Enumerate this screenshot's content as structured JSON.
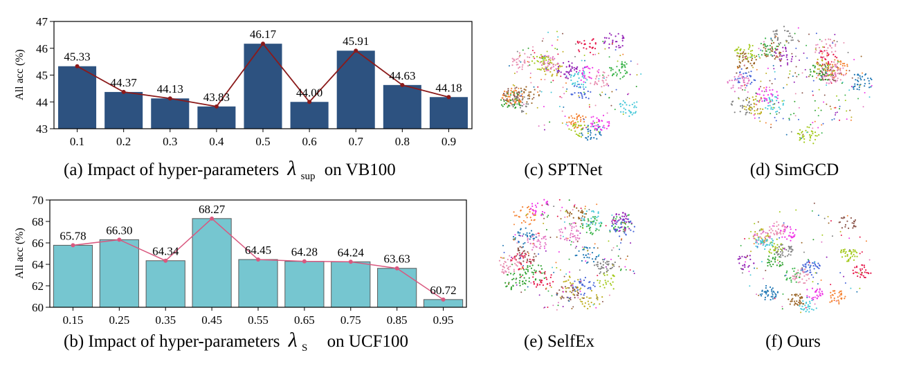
{
  "chart_data": [
    {
      "type": "bar",
      "title": "(a) Impact of hyper-parameters",
      "title_symbol": "λ",
      "title_subscript": "sup",
      "title_suffix": "on VB100",
      "ylabel": "All acc (%)",
      "xlabel": "",
      "ylim": [
        43,
        47
      ],
      "yticks": [
        "43",
        "44",
        "45",
        "46",
        "47"
      ],
      "categories": [
        "0.1",
        "0.2",
        "0.3",
        "0.4",
        "0.5",
        "0.6",
        "0.7",
        "0.8",
        "0.9"
      ],
      "values": [
        45.33,
        44.37,
        44.13,
        43.83,
        46.17,
        44.0,
        45.91,
        44.63,
        44.18
      ],
      "labels": [
        "45.33",
        "44.37",
        "44.13",
        "43.83",
        "46.17",
        "44.00",
        "45.91",
        "44.63",
        "44.18"
      ],
      "bar_color": "#2d5280",
      "line_color": "#8b1a1a",
      "grid": false
    },
    {
      "type": "bar",
      "title": "(b) Impact of hyper-parameters",
      "title_symbol": "λ",
      "title_subscript": "S",
      "title_suffix": "on UCF100",
      "ylabel": "All acc (%)",
      "xlabel": "",
      "ylim": [
        60,
        70
      ],
      "yticks": [
        "60",
        "62",
        "64",
        "66",
        "68",
        "70"
      ],
      "categories": [
        "0.15",
        "0.25",
        "0.35",
        "0.45",
        "0.55",
        "0.65",
        "0.75",
        "0.85",
        "0.95"
      ],
      "values": [
        65.78,
        66.3,
        64.34,
        68.27,
        64.45,
        64.28,
        64.24,
        63.63,
        60.72
      ],
      "labels": [
        "65.78",
        "66.30",
        "64.34",
        "68.27",
        "64.45",
        "64.28",
        "64.24",
        "63.63",
        "60.72"
      ],
      "bar_color": "#76c6d0",
      "line_color": "#d9587f",
      "grid": false
    }
  ],
  "tsne_panels": [
    {
      "caption": "(c) SPTNet"
    },
    {
      "caption": "(d) SimGCD"
    },
    {
      "caption": "(e) SelfEx"
    },
    {
      "caption": "(f) Ours"
    }
  ],
  "cluster_colors": [
    "#e6194b",
    "#3cb44b",
    "#4363d8",
    "#f58231",
    "#911eb4",
    "#46c8d8",
    "#f032e6",
    "#a3c91a",
    "#e88fb0",
    "#9a6324",
    "#808080",
    "#bfae1e",
    "#e377c2",
    "#8c564b",
    "#1f77b4",
    "#2ca02c"
  ]
}
